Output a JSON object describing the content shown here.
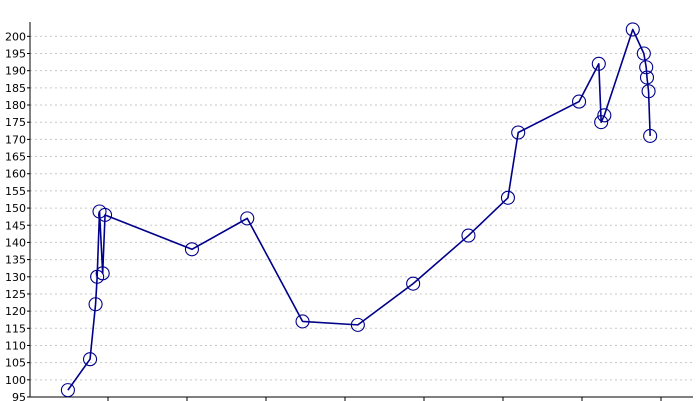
{
  "chart_data": {
    "type": "line",
    "title": "",
    "xlabel": "",
    "ylabel": "",
    "ylim": [
      95,
      205
    ],
    "y_ticks": [
      "95",
      "100",
      "105",
      "110",
      "115",
      "120",
      "125",
      "130",
      "135",
      "140",
      "145",
      "150",
      "155",
      "160",
      "165",
      "170",
      "175",
      "180",
      "185",
      "190",
      "195",
      "200"
    ],
    "x_ticks_labeled": false,
    "grid": true,
    "legend": "none",
    "line_color": "#00008b",
    "marker": "open-circle",
    "series": [
      {
        "x": [
          4.8,
          7.6,
          8.3,
          8.5,
          8.8,
          9.2,
          9.5,
          20.5,
          27.5,
          34.5,
          41.5,
          48.5,
          55.5,
          60.5,
          61.8,
          69.5,
          72.0,
          72.3,
          72.7,
          76.3,
          77.7,
          78.0,
          78.1,
          78.3,
          78.5
        ],
        "values": [
          97,
          106,
          122,
          130,
          149,
          131,
          148,
          138,
          147,
          117,
          116,
          128,
          142,
          153,
          172,
          181,
          192,
          175,
          177,
          202,
          195,
          191,
          188,
          184,
          171
        ]
      }
    ]
  }
}
